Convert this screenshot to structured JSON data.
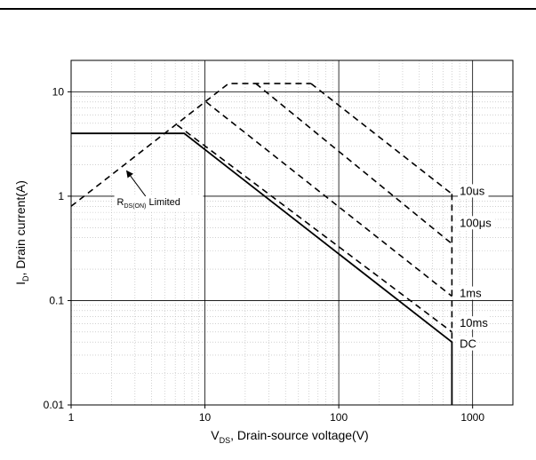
{
  "chart_data": {
    "type": "line",
    "title": "",
    "xlabel": {
      "main": "V",
      "sub": "DS",
      "rest": ", Drain-source voltage(V)"
    },
    "ylabel": {
      "main": "I",
      "sub": "D",
      "rest": ", Drain current(A)"
    },
    "x_scale": "log",
    "y_scale": "log",
    "xlim": [
      1,
      2000
    ],
    "ylim": [
      0.01,
      20
    ],
    "grid": true,
    "x_ticks": [
      {
        "value": 1,
        "label": "1"
      },
      {
        "value": 10,
        "label": "10"
      },
      {
        "value": 100,
        "label": "100"
      },
      {
        "value": 1000,
        "label": "1000"
      }
    ],
    "y_ticks": [
      {
        "value": 0.01,
        "label": "0.01"
      },
      {
        "value": 0.1,
        "label": "0.1"
      },
      {
        "value": 1,
        "label": "1"
      },
      {
        "value": 10,
        "label": "10"
      }
    ],
    "series": [
      {
        "name": "10us",
        "dash": true,
        "points": [
          [
            62,
            12
          ],
          [
            700,
            1.05
          ]
        ]
      },
      {
        "name": "100μs",
        "dash": true,
        "points": [
          [
            24,
            12
          ],
          [
            700,
            0.35
          ]
        ]
      },
      {
        "name": "1ms",
        "dash": true,
        "points": [
          [
            10.2,
            8
          ],
          [
            700,
            0.11
          ]
        ]
      },
      {
        "name": "10ms",
        "dash": true,
        "points": [
          [
            6.2,
            4.8
          ],
          [
            700,
            0.05
          ]
        ]
      },
      {
        "name": "DC",
        "dash": false,
        "points": [
          [
            1,
            4
          ],
          [
            7,
            4
          ],
          [
            700,
            0.04
          ],
          [
            700,
            0.01
          ]
        ]
      },
      {
        "name": "RDS(ON) limit",
        "dash": true,
        "points": [
          [
            1,
            0.8
          ],
          [
            15,
            12
          ],
          [
            62,
            12
          ]
        ]
      },
      {
        "name": "vertical limit",
        "dash": true,
        "points": [
          [
            700,
            1.05
          ],
          [
            700,
            0.04
          ]
        ]
      }
    ],
    "series_labels": [
      {
        "text": "10us",
        "x": 800,
        "y": 1.05
      },
      {
        "text": "100μs",
        "x": 800,
        "y": 0.52
      },
      {
        "text": "1ms",
        "x": 800,
        "y": 0.11
      },
      {
        "text": "10ms",
        "x": 800,
        "y": 0.057
      },
      {
        "text": "DC",
        "x": 800,
        "y": 0.036
      }
    ],
    "annotation": {
      "main": "R",
      "sub": "DS(ON)",
      "rest": " Limited",
      "label_at": [
        2.2,
        0.82
      ],
      "arrow_from": [
        3.6,
        1.0
      ],
      "arrow_to": [
        2.6,
        1.75
      ]
    }
  }
}
